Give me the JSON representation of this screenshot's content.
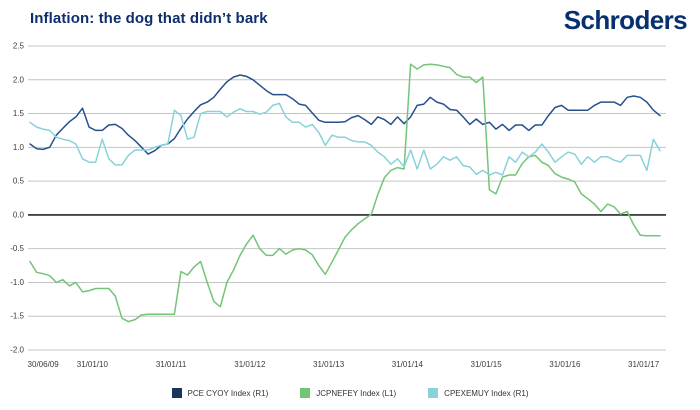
{
  "header": {
    "title": "Inflation: the dog that didn’t bark",
    "logo": "Schroders"
  },
  "chart_data": {
    "type": "line",
    "title": "Inflation: the dog that didn’t bark",
    "grid": true,
    "legend_position": "bottom",
    "ylim": [
      -2.0,
      2.5
    ],
    "y_tick_values": [
      2.5,
      2.0,
      1.5,
      1.0,
      0.5,
      0.0,
      -0.5,
      -1.0,
      -1.5,
      -2.0
    ],
    "y_tick_labels": [
      "2.5",
      "2.0",
      "1.5",
      "1.0",
      "0.5",
      "0.0",
      "-0.5",
      "-1.0",
      "-1.5",
      "-2.0"
    ],
    "x_tick_labels": [
      "30/06/09",
      "31/01/10",
      "31/01/11",
      "31/01/12",
      "31/01/13",
      "31/01/14",
      "31/01/15",
      "31/01/16",
      "31/01/17"
    ],
    "x_tick_months": [
      2,
      9.5,
      21.5,
      33.5,
      45.5,
      57.5,
      69.5,
      81.5,
      93.5
    ],
    "n_points": 97,
    "series": [
      {
        "name": "PCE CYOY Index  (R1)",
        "color": "#25508e",
        "values": [
          1.05,
          0.98,
          0.97,
          1.0,
          1.18,
          1.28,
          1.38,
          1.45,
          1.58,
          1.3,
          1.25,
          1.25,
          1.33,
          1.34,
          1.28,
          1.18,
          1.1,
          1.0,
          0.9,
          0.95,
          1.03,
          1.05,
          1.13,
          1.28,
          1.42,
          1.53,
          1.63,
          1.67,
          1.74,
          1.86,
          1.97,
          2.04,
          2.07,
          2.05,
          2.0,
          1.92,
          1.84,
          1.78,
          1.78,
          1.78,
          1.72,
          1.64,
          1.62,
          1.51,
          1.4,
          1.37,
          1.37,
          1.37,
          1.38,
          1.44,
          1.47,
          1.41,
          1.34,
          1.45,
          1.41,
          1.34,
          1.45,
          1.35,
          1.45,
          1.62,
          1.64,
          1.74,
          1.67,
          1.64,
          1.56,
          1.55,
          1.45,
          1.34,
          1.42,
          1.34,
          1.37,
          1.27,
          1.34,
          1.25,
          1.33,
          1.33,
          1.25,
          1.33,
          1.33,
          1.47,
          1.59,
          1.62,
          1.55,
          1.55,
          1.55,
          1.55,
          1.62,
          1.67,
          1.67,
          1.67,
          1.62,
          1.74,
          1.76,
          1.74,
          1.67,
          1.55,
          1.47
        ]
      },
      {
        "name": "JCPNEFEY Index  (L1)",
        "color": "#74c476",
        "values": [
          -0.69,
          -0.85,
          -0.87,
          -0.9,
          -1.0,
          -0.96,
          -1.05,
          -1.0,
          -1.14,
          -1.12,
          -1.09,
          -1.09,
          -1.09,
          -1.2,
          -1.53,
          -1.58,
          -1.55,
          -1.48,
          -1.47,
          -1.47,
          -1.47,
          -1.47,
          -1.47,
          -0.84,
          -0.89,
          -0.77,
          -0.69,
          -1.0,
          -1.28,
          -1.36,
          -1.0,
          -0.82,
          -0.6,
          -0.43,
          -0.3,
          -0.5,
          -0.6,
          -0.6,
          -0.5,
          -0.58,
          -0.52,
          -0.5,
          -0.52,
          -0.59,
          -0.75,
          -0.88,
          -0.7,
          -0.52,
          -0.33,
          -0.22,
          -0.13,
          -0.06,
          0.01,
          0.3,
          0.55,
          0.66,
          0.7,
          0.68,
          2.23,
          2.16,
          2.22,
          2.23,
          2.22,
          2.2,
          2.18,
          2.08,
          2.04,
          2.04,
          1.96,
          2.04,
          0.37,
          0.31,
          0.56,
          0.59,
          0.59,
          0.76,
          0.86,
          0.88,
          0.78,
          0.73,
          0.61,
          0.56,
          0.53,
          0.49,
          0.31,
          0.24,
          0.16,
          0.05,
          0.16,
          0.12,
          0.01,
          0.05,
          -0.15,
          -0.3,
          -0.31,
          -0.31,
          -0.31
        ]
      },
      {
        "name": "CPEXEMUY Index  (R1)",
        "color": "#87d3d9",
        "values": [
          1.37,
          1.3,
          1.27,
          1.25,
          1.15,
          1.12,
          1.1,
          1.05,
          0.83,
          0.78,
          0.78,
          1.12,
          0.83,
          0.74,
          0.74,
          0.88,
          0.96,
          0.96,
          0.96,
          1.0,
          1.03,
          1.05,
          1.55,
          1.47,
          1.12,
          1.15,
          1.5,
          1.53,
          1.53,
          1.53,
          1.45,
          1.52,
          1.57,
          1.53,
          1.53,
          1.49,
          1.52,
          1.62,
          1.65,
          1.45,
          1.37,
          1.37,
          1.3,
          1.34,
          1.22,
          1.03,
          1.18,
          1.15,
          1.15,
          1.1,
          1.08,
          1.08,
          1.03,
          0.93,
          0.86,
          0.75,
          0.83,
          0.71,
          0.96,
          0.68,
          0.96,
          0.68,
          0.75,
          0.86,
          0.81,
          0.86,
          0.73,
          0.71,
          0.6,
          0.66,
          0.59,
          0.63,
          0.59,
          0.86,
          0.78,
          0.93,
          0.86,
          0.93,
          1.05,
          0.93,
          0.78,
          0.86,
          0.93,
          0.9,
          0.75,
          0.86,
          0.78,
          0.86,
          0.86,
          0.81,
          0.78,
          0.88,
          0.88,
          0.88,
          0.66,
          1.12,
          0.95
        ]
      }
    ],
    "legend": [
      {
        "label": "PCE CYOY Index  (R1)",
        "color": "#17375e"
      },
      {
        "label": "JCPNEFEY Index  (L1)",
        "color": "#74c476"
      },
      {
        "label": "CPEXEMUY Index  (R1)",
        "color": "#87d3d9"
      }
    ]
  }
}
